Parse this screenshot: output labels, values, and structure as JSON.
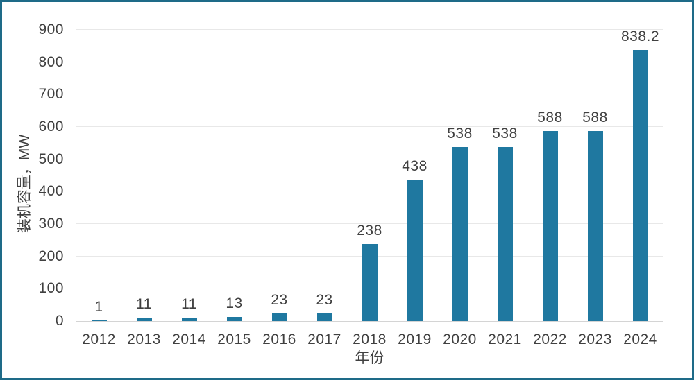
{
  "chart_data": {
    "type": "bar",
    "title": "",
    "xlabel": "年份",
    "ylabel": "装机容量，MW",
    "categories": [
      "2012",
      "2013",
      "2014",
      "2015",
      "2016",
      "2017",
      "2018",
      "2019",
      "2020",
      "2021",
      "2022",
      "2023",
      "2024"
    ],
    "values": [
      1,
      11,
      11,
      13,
      23,
      23,
      238,
      438,
      538,
      538,
      588,
      588,
      838.2
    ],
    "value_labels": [
      "1",
      "11",
      "11",
      "13",
      "23",
      "23",
      "238",
      "438",
      "538",
      "538",
      "588",
      "588",
      "838.2"
    ],
    "ylim": [
      0,
      900
    ],
    "yticks": [
      0,
      100,
      200,
      300,
      400,
      500,
      600,
      700,
      800,
      900
    ],
    "grid": true,
    "legend": false,
    "colors": {
      "bar": "#1F78A0",
      "frame_border": "#1E6B88",
      "gridline": "#E8E8E8",
      "axis_line": "#D4D4D4",
      "text": "#404040"
    }
  }
}
